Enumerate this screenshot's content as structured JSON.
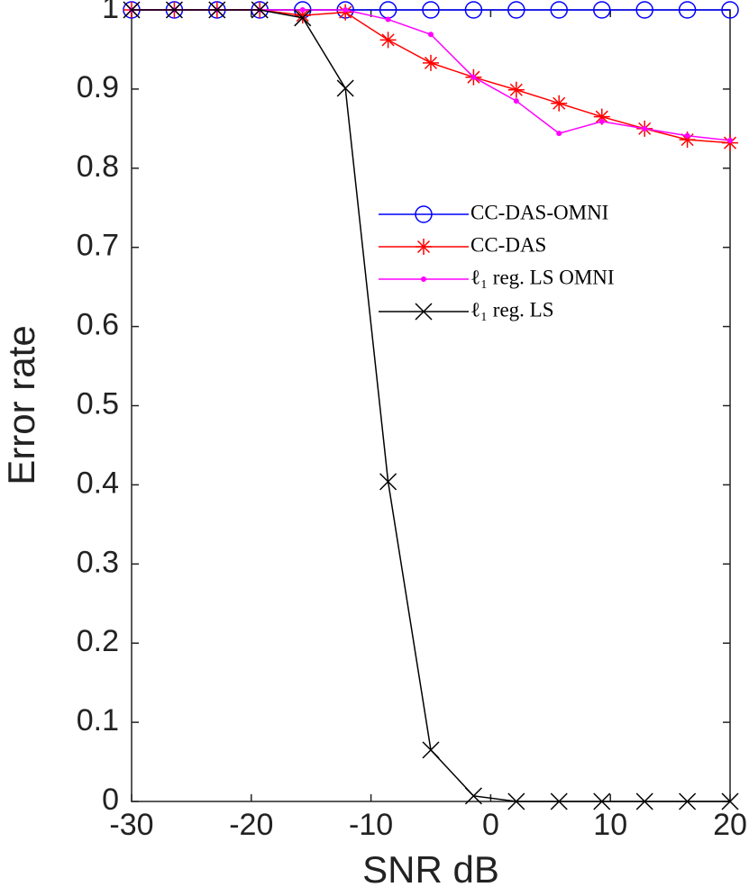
{
  "chart_data": {
    "type": "line",
    "xlabel": "SNR  dB",
    "ylabel": "Error rate",
    "x": [
      -30,
      -26.43,
      -22.86,
      -19.29,
      -15.71,
      -12.14,
      -8.57,
      -5,
      -1.43,
      2.14,
      5.71,
      9.29,
      12.86,
      16.43,
      20
    ],
    "xlim": [
      -30,
      20
    ],
    "xticks": [
      -30,
      -20,
      -10,
      0,
      10,
      20
    ],
    "ylim": [
      0,
      1
    ],
    "yticks": [
      0,
      0.1,
      0.2,
      0.3,
      0.4,
      0.5,
      0.6,
      0.7,
      0.8,
      0.9,
      1
    ],
    "series": [
      {
        "name": "CC-DAS-OMNI",
        "color": "#0000ff",
        "marker": "circle",
        "values": [
          1,
          1,
          1,
          1,
          1,
          1,
          1,
          1,
          1,
          1,
          1,
          1,
          1,
          1,
          1
        ]
      },
      {
        "name": "CC-DAS",
        "color": "#ff0000",
        "marker": "asterisk",
        "values": [
          1,
          1,
          1,
          1,
          0.993,
          0.997,
          0.962,
          0.933,
          0.915,
          0.899,
          0.882,
          0.865,
          0.85,
          0.836,
          0.832
        ]
      },
      {
        "name": "ℓ₁ reg. LS OMNI",
        "color": "#ff00ff",
        "marker": "dot",
        "values": [
          1,
          1,
          1,
          1,
          1,
          1,
          0.988,
          0.969,
          0.915,
          0.885,
          0.844,
          0.859,
          0.85,
          0.841,
          0.835
        ]
      },
      {
        "name": "ℓ₁ reg. LS",
        "color": "#000000",
        "marker": "x",
        "values": [
          1,
          1,
          1,
          1,
          0.99,
          0.901,
          0.404,
          0.065,
          0.007,
          0,
          0,
          0,
          0,
          0,
          0
        ]
      }
    ],
    "legend": "right"
  }
}
